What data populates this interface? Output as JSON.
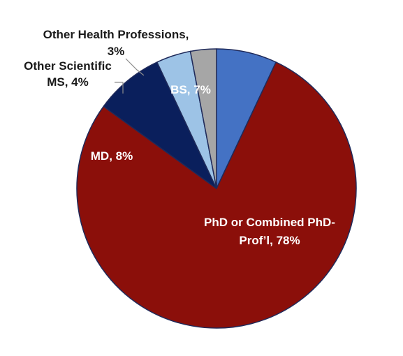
{
  "chart_data": {
    "type": "pie",
    "title": "",
    "slices": [
      {
        "label": "BS, 7%",
        "name": "BS",
        "value": 7,
        "color": "#4472C4",
        "text_color": "#ffffff"
      },
      {
        "label": "PhD or Combined PhD-Prof'l, 78%",
        "name": "PhD or Combined PhD-Prof'l",
        "value": 78,
        "color": "#8B0F0A",
        "text_color": "#ffffff"
      },
      {
        "label": "MD, 8%",
        "name": "MD",
        "value": 8,
        "color": "#0A1F5C",
        "text_color": "#ffffff"
      },
      {
        "label": "Other Scientific MS, 4%",
        "name": "Other Scientific MS",
        "value": 4,
        "color": "#9DC3E6",
        "text_color": "#1a1a1a"
      },
      {
        "label": "Other Health Professions, 3%",
        "name": "Other Health Professions",
        "value": 3,
        "color": "#A6A6A6",
        "text_color": "#1a1a1a"
      }
    ],
    "start_angle": "12 o'clock",
    "direction": "clockwise",
    "slice_border_color": "#1F2A5A",
    "legend": "none"
  },
  "labels": {
    "bs": "BS, 7%",
    "phd_line1": "PhD or Combined PhD-",
    "phd_line2": "Prof’l, 78%",
    "md": "MD, 8%",
    "other_ms_line1": "Other Scientific",
    "other_ms_line2": "MS, 4%",
    "other_health_line1": "Other Health Professions,",
    "other_health_line2": "3%"
  }
}
